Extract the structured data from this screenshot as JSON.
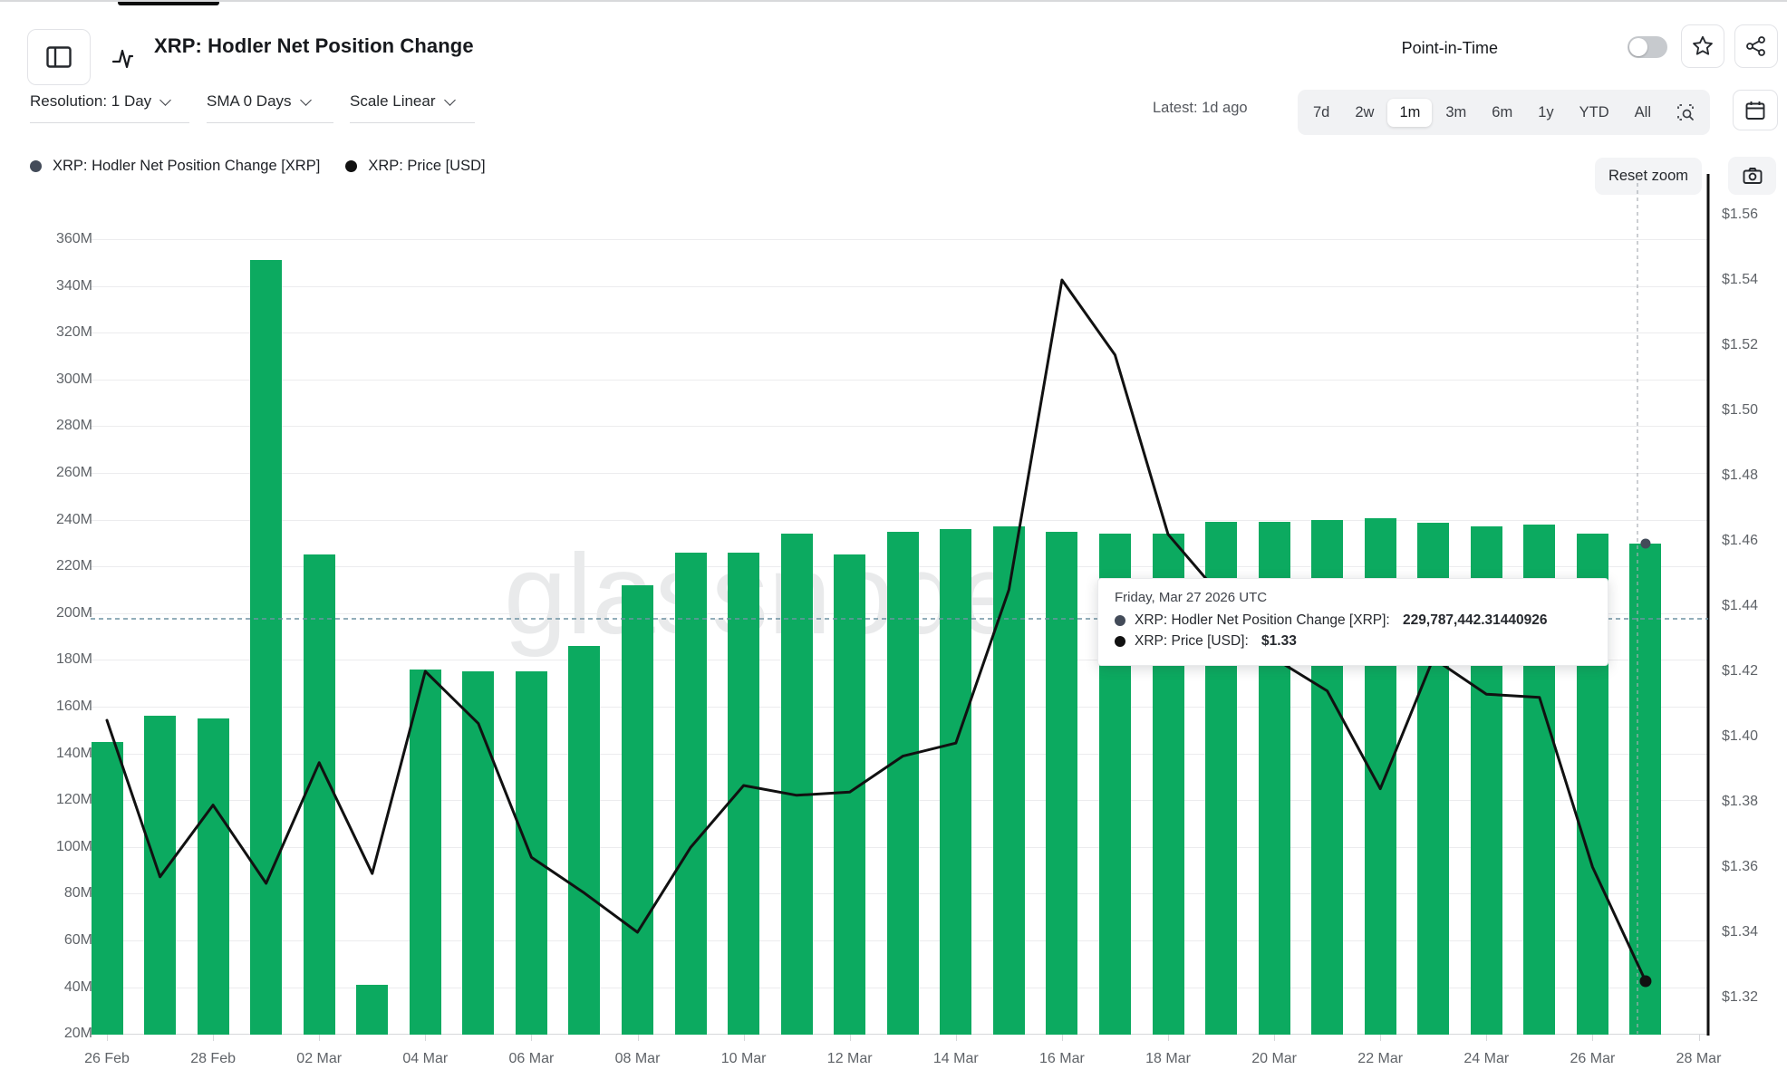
{
  "header": {
    "title": "XRP: Hodler Net Position Change",
    "point_in_time_label": "Point-in-Time",
    "point_in_time_on": false
  },
  "toolbar": {
    "resolution_label": "Resolution: 1 Day",
    "sma_label": "SMA 0 Days",
    "scale_label": "Scale Linear",
    "latest_label": "Latest: 1d ago",
    "ranges": [
      "7d",
      "2w",
      "1m",
      "3m",
      "6m",
      "1y",
      "YTD",
      "All"
    ],
    "active_range": "1m"
  },
  "legend": [
    {
      "label": "XRP: Hodler Net Position Change [XRP]",
      "color": "#434b59"
    },
    {
      "label": "XRP: Price [USD]",
      "color": "#111111"
    }
  ],
  "chart_controls": {
    "reset_zoom_label": "Reset zoom"
  },
  "tooltip": {
    "date": "Friday, Mar 27 2026 UTC",
    "rows": [
      {
        "label": "XRP: Hodler Net Position Change [XRP]:",
        "value": "229,787,442.31440926",
        "color": "#434b59"
      },
      {
        "label": "XRP: Price [USD]:",
        "value": "$1.33",
        "color": "#111111"
      }
    ]
  },
  "watermark": "glassnode",
  "chart_data": {
    "type": "combo",
    "x": [
      "26 Feb",
      "27 Feb",
      "28 Feb",
      "01 Mar",
      "02 Mar",
      "03 Mar",
      "04 Mar",
      "05 Mar",
      "06 Mar",
      "07 Mar",
      "08 Mar",
      "09 Mar",
      "10 Mar",
      "11 Mar",
      "12 Mar",
      "13 Mar",
      "14 Mar",
      "15 Mar",
      "16 Mar",
      "17 Mar",
      "18 Mar",
      "19 Mar",
      "20 Mar",
      "21 Mar",
      "22 Mar",
      "23 Mar",
      "24 Mar",
      "25 Mar",
      "26 Mar",
      "27 Mar"
    ],
    "x_tick_labels": [
      "26 Feb",
      "28 Feb",
      "02 Mar",
      "04 Mar",
      "06 Mar",
      "08 Mar",
      "10 Mar",
      "12 Mar",
      "14 Mar",
      "16 Mar",
      "18 Mar",
      "20 Mar",
      "22 Mar",
      "24 Mar",
      "26 Mar",
      "28 Mar"
    ],
    "series": [
      {
        "name": "XRP: Hodler Net Position Change [XRP]",
        "type": "bar",
        "axis": "left",
        "unit": "million XRP",
        "color": "#0caa60",
        "values": [
          145,
          156,
          155,
          351,
          225,
          41,
          176,
          175,
          175,
          186,
          212,
          226,
          226,
          234,
          225,
          235,
          236,
          237,
          235,
          234,
          234,
          239,
          239,
          240,
          240.5,
          238.5,
          237,
          238,
          234,
          229.787442
        ]
      },
      {
        "name": "XRP: Price [USD]",
        "type": "line",
        "axis": "right",
        "unit": "USD",
        "color": "#111111",
        "values": [
          1.405,
          1.357,
          1.379,
          1.355,
          1.392,
          1.358,
          1.42,
          1.404,
          1.363,
          1.352,
          1.34,
          1.366,
          1.385,
          1.382,
          1.383,
          1.394,
          1.398,
          1.445,
          1.54,
          1.517,
          1.462,
          1.443,
          1.424,
          1.414,
          1.384,
          1.424,
          1.413,
          1.412,
          1.36,
          1.325
        ]
      }
    ],
    "left_axis": {
      "ticks": [
        "360M",
        "340M",
        "320M",
        "300M",
        "280M",
        "260M",
        "240M",
        "220M",
        "200M",
        "180M",
        "160M",
        "140M",
        "120M",
        "100M",
        "80M",
        "60M",
        "40M",
        "20M"
      ],
      "max_m": 360,
      "min_m": 20,
      "grid": true
    },
    "right_axis": {
      "ticks": [
        "$1.56",
        "$1.54",
        "$1.52",
        "$1.50",
        "$1.48",
        "$1.46",
        "$1.44",
        "$1.42",
        "$1.40",
        "$1.38",
        "$1.36",
        "$1.34",
        "$1.32"
      ],
      "max": 1.56,
      "min": 1.32
    },
    "reference_lines": {
      "horizontal_value_million": 197.7,
      "vertical_at_x": "27 Mar"
    },
    "hovered_point": {
      "x": "27 Mar",
      "bar_value_million": 229.787442,
      "price": 1.325
    },
    "legend_position": "top-left"
  }
}
